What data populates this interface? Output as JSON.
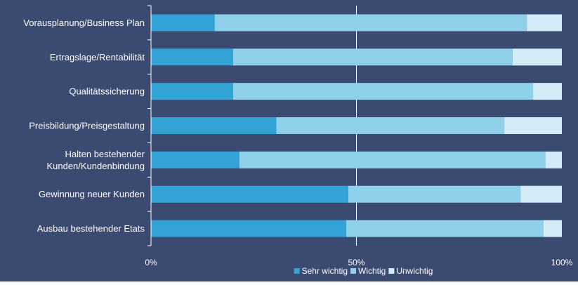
{
  "chart_data": {
    "type": "bar",
    "orientation": "horizontal",
    "stacked": true,
    "normalized": true,
    "categories": [
      "Vorausplanung/Business Plan",
      "Ertragslage/Rentabilität",
      "Qualitätssicherung",
      "Preisbildung/Preisgestaltung",
      "Halten bestehender Kunden/Kundenbindung",
      "Gewinnung neuer Kunden",
      "Ausbau bestehender Etats"
    ],
    "category_label_lines": [
      [
        "Vorausplanung/Business Plan"
      ],
      [
        "Ertragslage/Rentabilität"
      ],
      [
        "Qualitätssicherung"
      ],
      [
        "Preisbildung/Preisgestaltung"
      ],
      [
        "Halten bestehender",
        "Kunden/Kundenbindung"
      ],
      [
        "Gewinnung neuer Kunden"
      ],
      [
        "Ausbau bestehender Etats"
      ]
    ],
    "series": [
      {
        "name": "Sehr wichtig",
        "color": "#33a3d6",
        "values": [
          15.5,
          20,
          20,
          30.5,
          21.5,
          48,
          47.5
        ]
      },
      {
        "name": "Wichtig",
        "color": "#8ecfea",
        "values": [
          76,
          68,
          73,
          55.5,
          74.5,
          42,
          48
        ]
      },
      {
        "name": "Unwichtig",
        "color": "#d3ecf7",
        "values": [
          8.5,
          12,
          7,
          14,
          4,
          10,
          4.5
        ]
      }
    ],
    "xlim": [
      0,
      100
    ],
    "x_ticks": [
      0,
      50,
      100
    ],
    "x_tick_labels": [
      "0%",
      "50%",
      "100%"
    ],
    "title": "",
    "xlabel": "",
    "ylabel": "",
    "grid": {
      "vertical_gridline_at": 50,
      "gridline_color": "#ffffff"
    },
    "legend_placement": "bottom-center",
    "background_color": "#3b4a70"
  }
}
